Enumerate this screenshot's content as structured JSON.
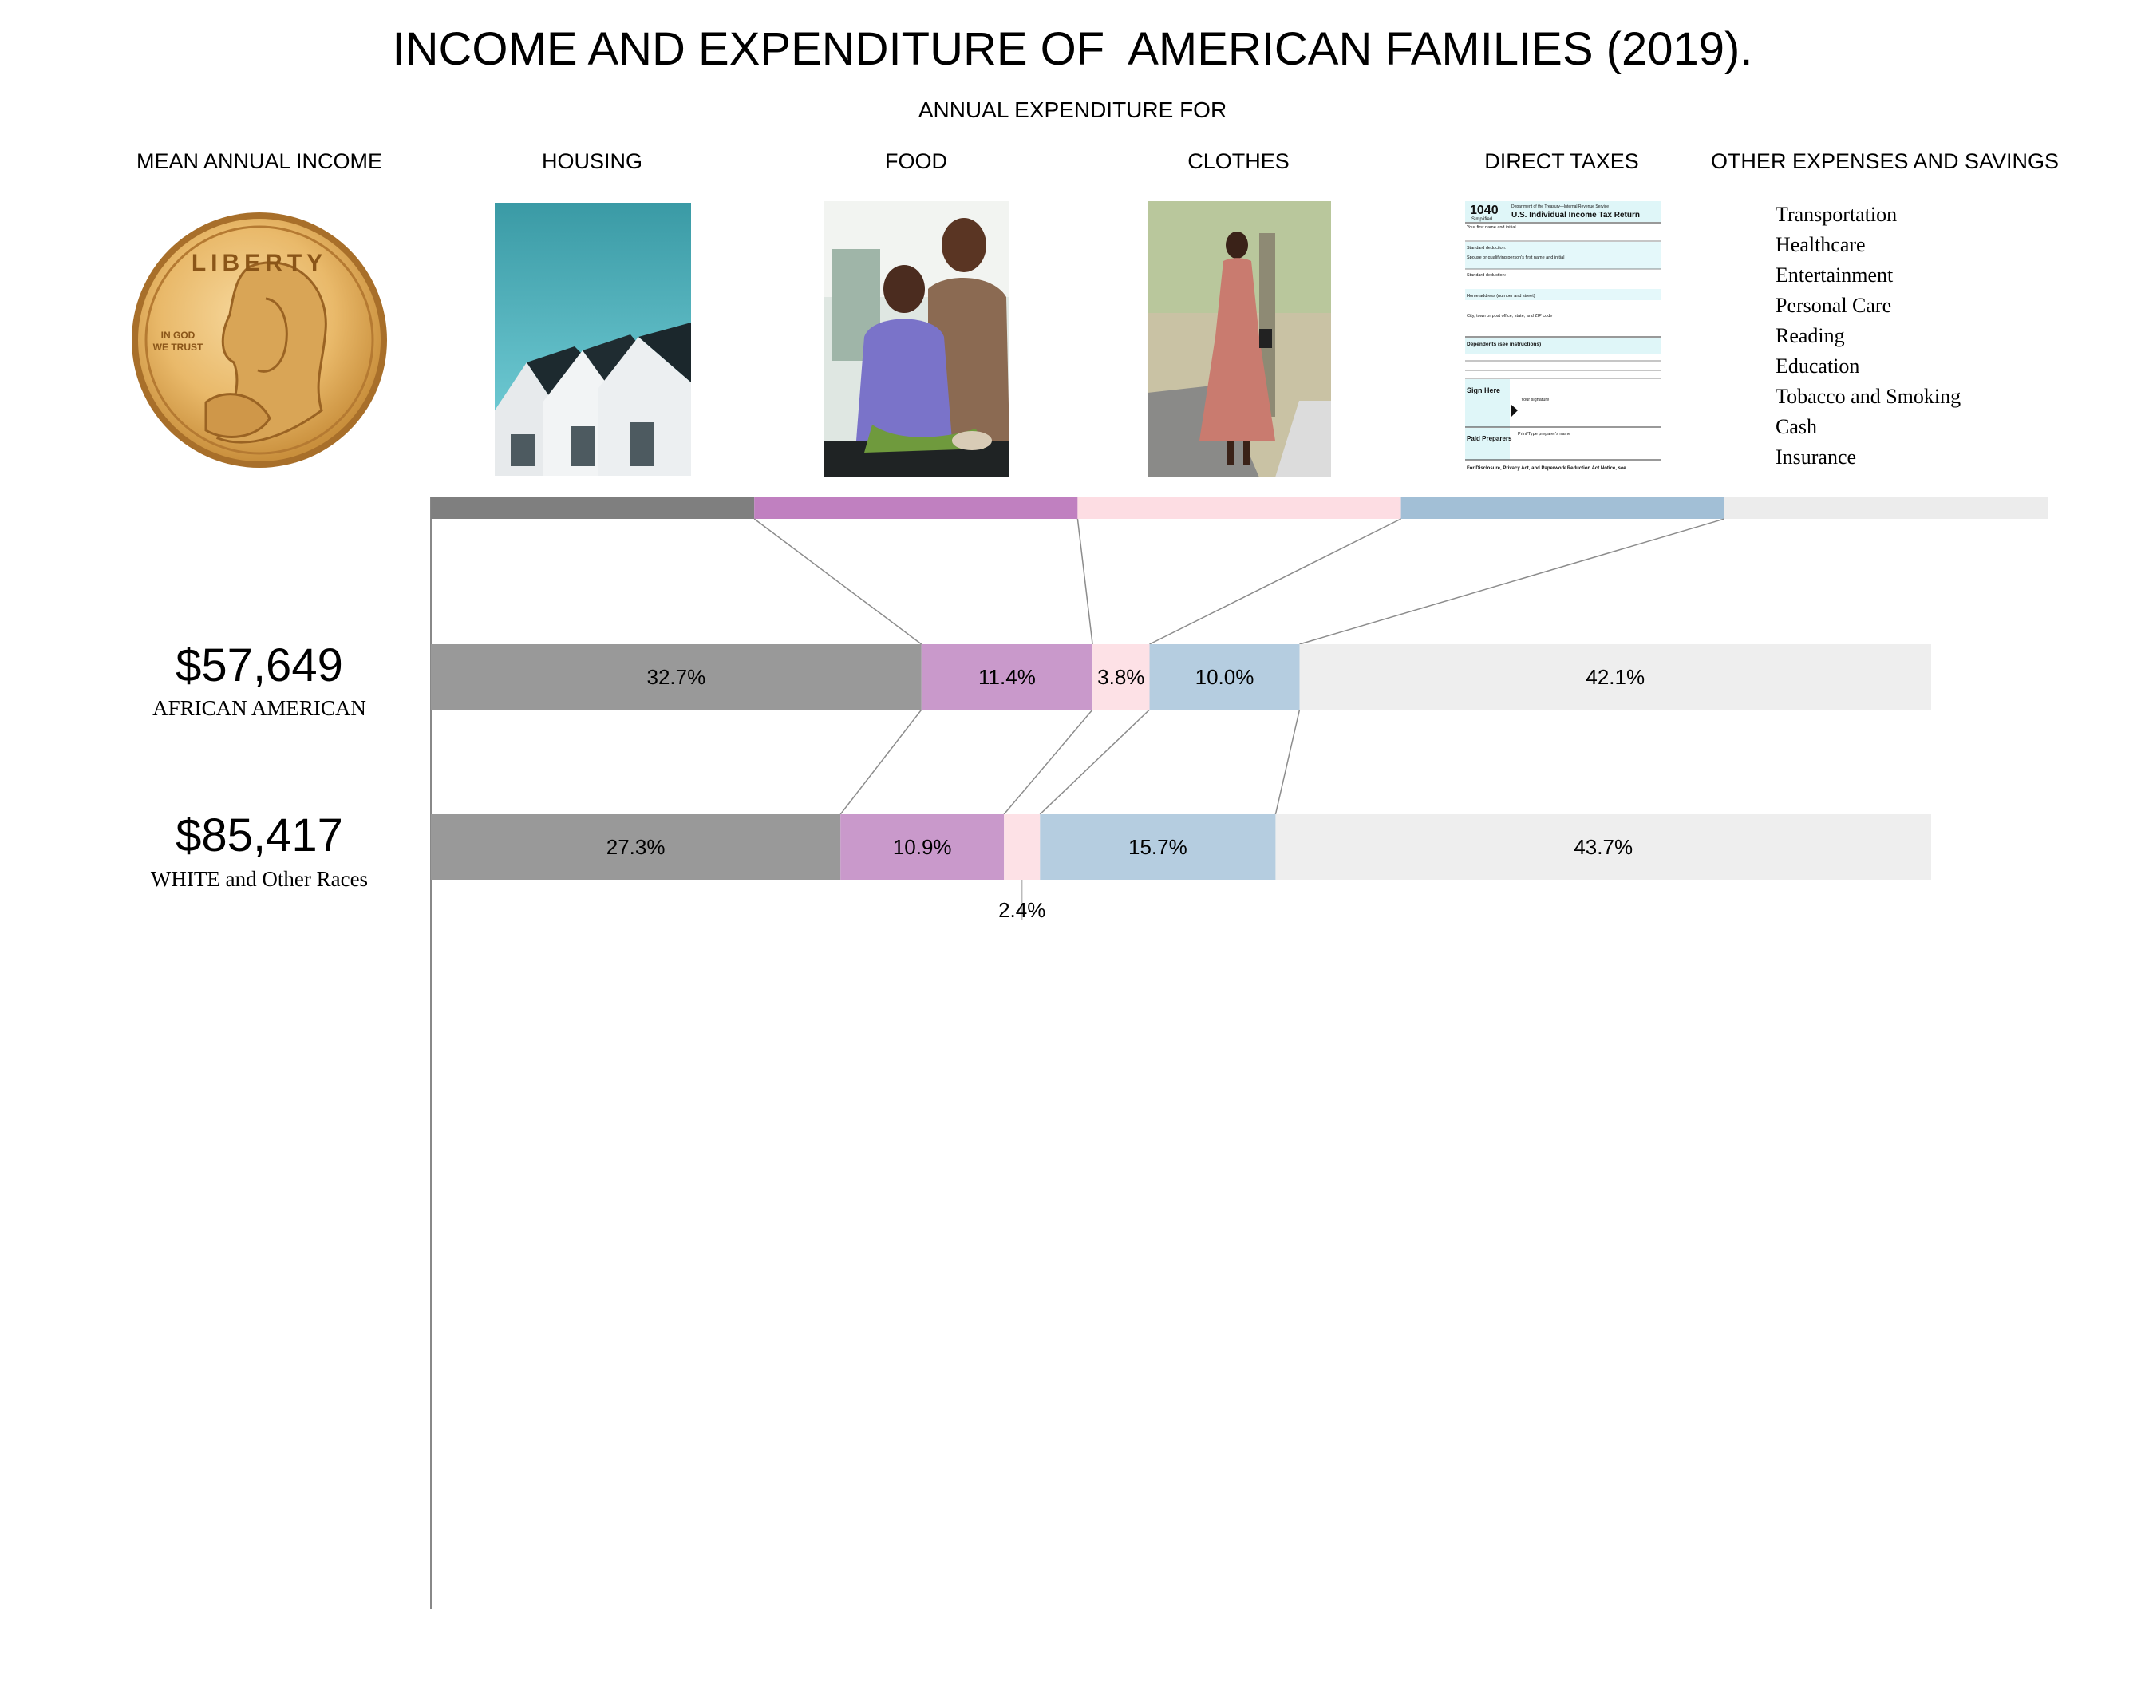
{
  "title": "INCOME AND EXPENDITURE OF  AMERICAN FAMILIES (2019).",
  "subtitle": "ANNUAL EXPENDITURE FOR",
  "columns": {
    "income": "MEAN ANNUAL INCOME",
    "housing": "HOUSING",
    "food": "FOOD",
    "clothes": "CLOTHES",
    "taxes": "DIRECT TAXES",
    "other": "OTHER EXPENSES AND SAVINGS"
  },
  "other_items": [
    "Transportation",
    "Healthcare",
    "Entertainment",
    "Personal Care",
    "Reading",
    "Education",
    "Tobacco and Smoking",
    "Cash",
    "Insurance"
  ],
  "coin": {
    "top": "LIBERTY",
    "motto_1": "IN GOD",
    "motto_2": "WE TRUST"
  },
  "tax_form": {
    "number": "1040",
    "sub": "Simplified",
    "heading": "U.S. Individual Income Tax Return",
    "dept": "Department of the Treasury—Internal Revenue Service",
    "l1": "Your first name and initial",
    "l2": "Standard deduction:",
    "l3": "Spouse or qualifying person's first name and initial",
    "l4": "Home address (number and street)",
    "l5": "City, town or post office, state, and ZIP code",
    "l6": "Dependents (see instructions)",
    "l7": "Sign Here",
    "l8": "Your signature",
    "l9": "Paid Preparers",
    "l10": "Print/Type preparer's name",
    "l11": "For Disclosure, Privacy Act, and Paperwork Reduction Act Notice, see"
  },
  "chart_data": {
    "type": "bar",
    "stacked": true,
    "orientation": "horizontal",
    "title": "INCOME AND EXPENDITURE OF  AMERICAN FAMILIES (2019).",
    "subtitle": "ANNUAL EXPENDITURE FOR",
    "xlim": [
      0,
      100
    ],
    "categories": [
      "HOUSING",
      "FOOD",
      "CLOTHES",
      "DIRECT TAXES",
      "OTHER EXPENSES AND SAVINGS"
    ],
    "category_colors": [
      "#999999",
      "#c999cb",
      "#fde1e6",
      "#b5cde0",
      "#eeeeee"
    ],
    "header_colors": [
      "#7f7f7f",
      "#c080c0",
      "#fddde3",
      "#a2bfd6",
      "#ececec"
    ],
    "rows": [
      {
        "group": "AFRICAN AMERICAN",
        "income": "$57,649",
        "income_value": 57649,
        "values": [
          32.7,
          11.4,
          3.8,
          10.0,
          42.1
        ],
        "labels": [
          "32.7%",
          "11.4%",
          "3.8%",
          "10.0%",
          "42.1%"
        ]
      },
      {
        "group": "WHITE and Other Races",
        "income": "$85,417",
        "income_value": 85417,
        "values": [
          27.3,
          10.9,
          2.4,
          15.7,
          43.7
        ],
        "labels": [
          "27.3%",
          "10.9%",
          "2.4%",
          "15.7%",
          "43.7%"
        ]
      }
    ]
  }
}
